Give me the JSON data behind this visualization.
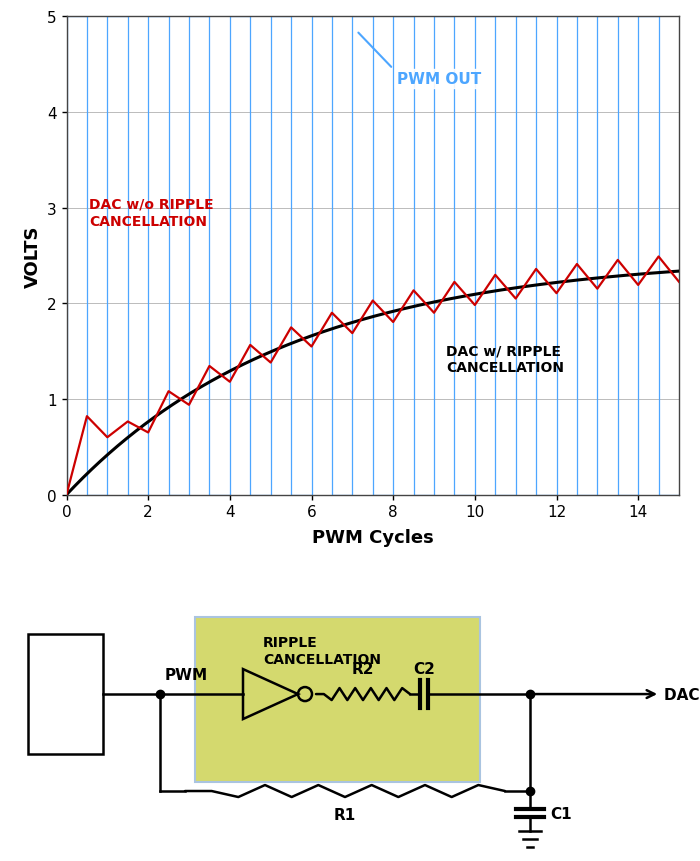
{
  "ylabel": "VOLTS",
  "xlabel": "PWM Cycles",
  "ylim": [
    0,
    5
  ],
  "xlim": [
    0,
    15
  ],
  "yticks": [
    0,
    1,
    2,
    3,
    4,
    5
  ],
  "xticks": [
    0,
    2,
    4,
    6,
    8,
    10,
    12,
    14
  ],
  "bg_color": "#ffffff",
  "pwm_color": "#4da6ff",
  "dac_ripple_color": "#cc0000",
  "dac_smooth_color": "#000000",
  "grid_color": "#bbbbbb",
  "num_pwm_cycles": 15,
  "pwm_duty": 0.5,
  "tau_smooth": 5.5,
  "target_v": 2.5,
  "ripple_box_color": "#d4d96e",
  "ripple_box_edge": "#aac4e0",
  "pwm_label": "PWM OUT",
  "ripple_label": "DAC w/o RIPPLE\nCANCELLATION",
  "smooth_label": "DAC w/ RIPPLE\nCANCELLATION",
  "xlabel_str": "PWM Cycles",
  "ylabel_str": "VOLTS"
}
